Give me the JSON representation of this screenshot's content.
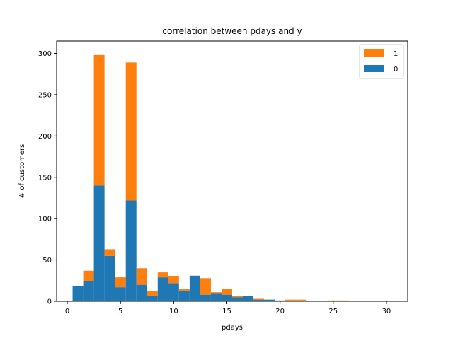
{
  "chart_data": {
    "type": "bar",
    "stacked": true,
    "title": "correlation between pdays and y",
    "xlabel": "pdays",
    "ylabel": "# of customers",
    "xlim": [
      -1,
      32
    ],
    "ylim": [
      0,
      315
    ],
    "xticks": [
      0,
      5,
      10,
      15,
      20,
      25,
      30
    ],
    "yticks": [
      0,
      50,
      100,
      150,
      200,
      250,
      300
    ],
    "bin_edges": [
      0.5,
      1.5,
      2.5,
      3.5,
      4.5,
      5.5,
      6.5,
      7.5,
      8.5,
      9.5,
      10.5,
      11.5,
      12.5,
      13.5,
      14.5,
      15.5,
      16.5,
      17.5,
      18.5,
      19.5,
      20.5,
      21.5,
      22.5,
      23.5,
      24.5,
      25.5,
      26.5,
      27.5,
      28.5,
      29.5,
      30.5
    ],
    "grid": false,
    "legend_position": "top-right",
    "series": [
      {
        "name": "0",
        "color": "#1f77b4",
        "values": [
          18,
          24,
          140,
          55,
          17,
          122,
          20,
          6,
          29,
          22,
          13,
          31,
          8,
          9,
          8,
          5,
          6,
          2,
          2,
          1,
          1,
          1,
          0,
          0,
          0,
          0,
          0,
          0,
          0,
          0
        ]
      },
      {
        "name": "1",
        "color": "#ff7f0e",
        "values": [
          0,
          13,
          158,
          8,
          12,
          167,
          20,
          6,
          6,
          8,
          2,
          0,
          20,
          2,
          7,
          1,
          0,
          1,
          0,
          0,
          1,
          1,
          0,
          0,
          1,
          1,
          0,
          0,
          0,
          0
        ]
      }
    ],
    "legend": [
      {
        "label": "1",
        "color": "#ff7f0e"
      },
      {
        "label": "0",
        "color": "#1f77b4"
      }
    ]
  }
}
